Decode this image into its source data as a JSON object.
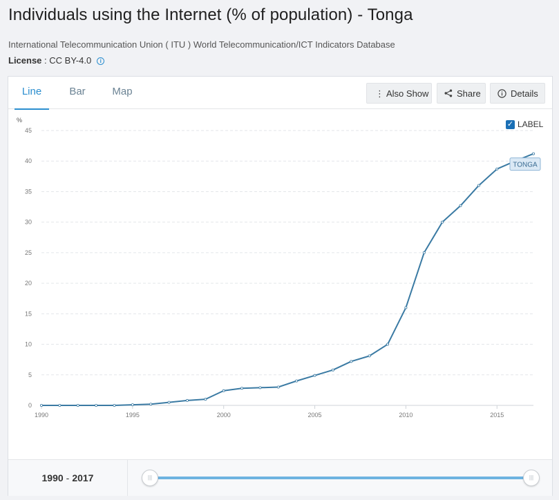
{
  "header": {
    "title": "Individuals using the Internet (% of population) - Tonga",
    "source": "International Telecommunication Union ( ITU ) World Telecommunication/ICT Indicators Database",
    "license_label": "License",
    "license_value": " : CC BY-4.0"
  },
  "tabs": [
    {
      "label": "Line",
      "active": true
    },
    {
      "label": "Bar",
      "active": false
    },
    {
      "label": "Map",
      "active": false
    }
  ],
  "toolbar": {
    "also_show": "Also Show",
    "share": "Share",
    "details": "Details"
  },
  "label_toggle": {
    "label": "LABEL",
    "checked": true
  },
  "footer": {
    "range_start": "1990",
    "range_sep": "-",
    "range_end": "2017"
  },
  "colors": {
    "line": "#3a7aa3",
    "accent": "#2b8ecf",
    "grid": "#e3e6ea",
    "axis_text": "#777777"
  },
  "chart_data": {
    "type": "line",
    "ylabel": "%",
    "ylim": [
      0,
      45
    ],
    "yticks": [
      0,
      5,
      10,
      15,
      20,
      25,
      30,
      35,
      40,
      45
    ],
    "xlim": [
      1990,
      2017
    ],
    "xticks": [
      1990,
      1995,
      2000,
      2005,
      2010,
      2015
    ],
    "grid": true,
    "series": [
      {
        "name": "TONGA",
        "x": [
          1990,
          1991,
          1992,
          1993,
          1994,
          1995,
          1996,
          1997,
          1998,
          1999,
          2000,
          2001,
          2002,
          2003,
          2004,
          2005,
          2006,
          2007,
          2008,
          2009,
          2010,
          2011,
          2012,
          2013,
          2014,
          2015,
          2016,
          2017
        ],
        "values": [
          0,
          0,
          0,
          0,
          0,
          0.1,
          0.2,
          0.5,
          0.8,
          1.0,
          2.4,
          2.8,
          2.9,
          3.0,
          4.0,
          4.9,
          5.8,
          7.2,
          8.1,
          10.0,
          16.0,
          25.0,
          30.0,
          32.7,
          36.0,
          38.7,
          40.0,
          41.2
        ]
      }
    ]
  }
}
